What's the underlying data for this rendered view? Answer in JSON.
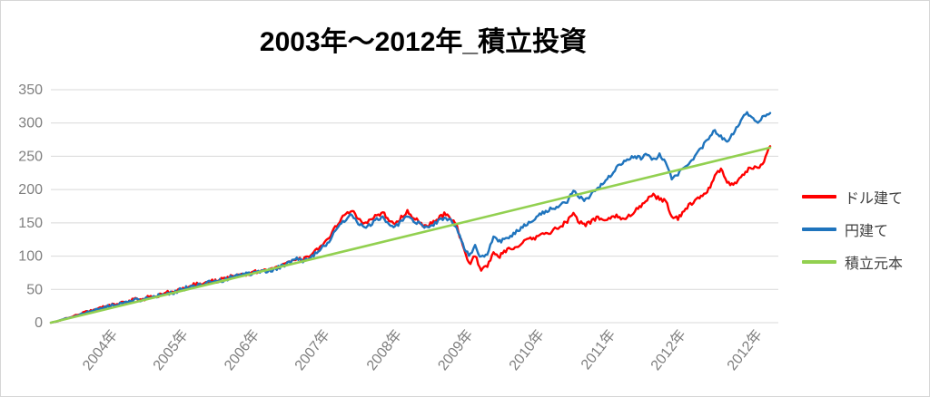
{
  "title": "2003年～2012年_積立投資",
  "colors": {
    "red": "#ff0000",
    "blue": "#1f74bd",
    "green": "#92d050",
    "grid": "#d9d9d9",
    "axis_text": "#7f7f7f",
    "legend_text": "#3f3f3f",
    "title_text": "#000000"
  },
  "legend": [
    {
      "label": "ドル建て",
      "color_key": "red"
    },
    {
      "label": "円建て",
      "color_key": "blue"
    },
    {
      "label": "積立元本",
      "color_key": "green"
    }
  ],
  "y_axis": {
    "min": 0,
    "max": 350,
    "ticks": [
      0,
      50,
      100,
      150,
      200,
      250,
      300,
      350
    ]
  },
  "x_axis": {
    "labels": [
      "2004年",
      "2005年",
      "2006年",
      "2007年",
      "2008年",
      "2009年",
      "2010年",
      "2011年",
      "2012年",
      "2012年"
    ],
    "positions": [
      0.086,
      0.184,
      0.283,
      0.381,
      0.481,
      0.58,
      0.679,
      0.778,
      0.876,
      0.982
    ]
  },
  "chart_data": {
    "type": "line",
    "title": "2003年～2012年_積立投資",
    "x_unit": "month",
    "x_start": "2003-01",
    "x_end": "2012-10",
    "ylim": [
      0,
      350
    ],
    "grid": "horizontal",
    "legend_position": "right",
    "noise_amplitude": 3,
    "series": [
      {
        "name": "ドル建て",
        "color_key": "red",
        "values": [
          0,
          2,
          5,
          8,
          11,
          14,
          17,
          20,
          22,
          25,
          27,
          29,
          31,
          33,
          35,
          36,
          38,
          40,
          43,
          45,
          47,
          50,
          53,
          56,
          58,
          60,
          62,
          63,
          65,
          68,
          70,
          72,
          74,
          76,
          77,
          78,
          80,
          84,
          88,
          93,
          98,
          94,
          100,
          107,
          115,
          125,
          139,
          153,
          163,
          170,
          156,
          148,
          153,
          161,
          166,
          153,
          147,
          159,
          168,
          158,
          151,
          144,
          149,
          157,
          163,
          158,
          146,
          115,
          88,
          100,
          80,
          86,
          105,
          100,
          108,
          112,
          116,
          122,
          126,
          128,
          132,
          135,
          141,
          146,
          152,
          163,
          150,
          147,
          152,
          158,
          154,
          158,
          161,
          155,
          160,
          168,
          175,
          185,
          191,
          186,
          182,
          160,
          157,
          168,
          178,
          185,
          192,
          200,
          222,
          231,
          212,
          207,
          216,
          226,
          234,
          230,
          242,
          265
        ]
      },
      {
        "name": "円建て",
        "color_key": "blue",
        "values": [
          0,
          2,
          5,
          8,
          10,
          13,
          16,
          19,
          21,
          24,
          26,
          28,
          30,
          32,
          34,
          35,
          37,
          39,
          42,
          44,
          46,
          49,
          52,
          55,
          57,
          59,
          61,
          62,
          64,
          67,
          69,
          71,
          73,
          75,
          76,
          77,
          79,
          83,
          86,
          91,
          96,
          92,
          98,
          104,
          111,
          120,
          133,
          146,
          155,
          162,
          149,
          143,
          148,
          155,
          159,
          148,
          143,
          154,
          162,
          154,
          148,
          142,
          146,
          153,
          158,
          154,
          144,
          118,
          100,
          115,
          98,
          104,
          130,
          122,
          126,
          132,
          138,
          145,
          152,
          158,
          165,
          170,
          172,
          176,
          183,
          197,
          188,
          185,
          193,
          202,
          212,
          222,
          232,
          240,
          247,
          250,
          248,
          252,
          245,
          252,
          240,
          217,
          222,
          235,
          242,
          252,
          265,
          278,
          288,
          280,
          272,
          285,
          298,
          315,
          308,
          302,
          310,
          315
        ]
      },
      {
        "name": "積立元本",
        "color_key": "green",
        "linear": {
          "start": 0,
          "end": 263
        }
      }
    ]
  }
}
